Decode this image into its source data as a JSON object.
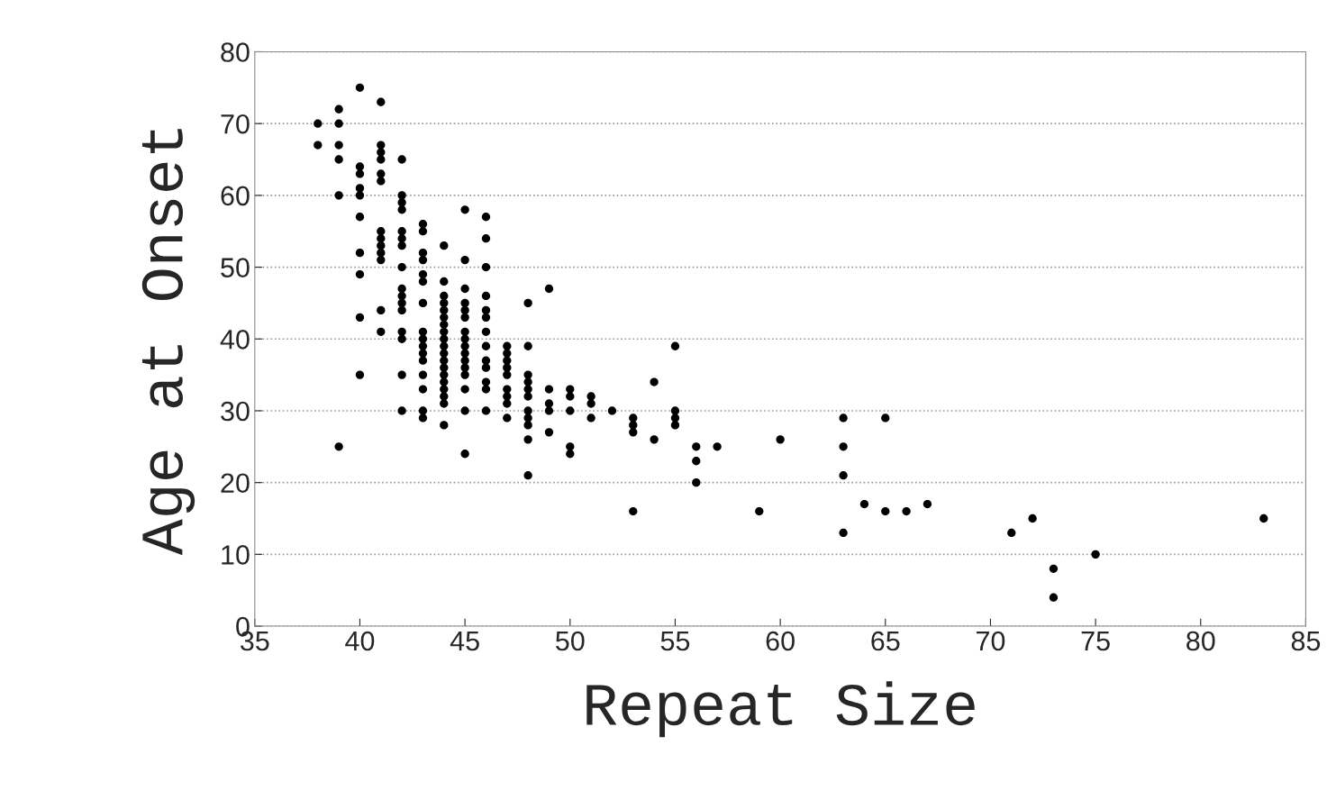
{
  "chart_data": {
    "type": "scatter",
    "xlabel": "Repeat Size",
    "ylabel": "Age at Onset",
    "xlim": [
      35,
      85
    ],
    "xticks": [
      35,
      40,
      45,
      50,
      55,
      60,
      65,
      70,
      75,
      80,
      85
    ],
    "ylim": [
      0,
      80
    ],
    "yticks": [
      0,
      10,
      20,
      30,
      40,
      50,
      60,
      70,
      80
    ],
    "grid": "y",
    "marker": "circle",
    "series": [
      {
        "color": "#000000",
        "x": [
          38,
          38,
          39,
          39,
          39,
          39,
          39,
          39,
          40,
          40,
          40,
          40,
          40,
          40,
          40,
          40,
          40,
          40,
          41,
          41,
          41,
          41,
          41,
          41,
          41,
          41,
          41,
          41,
          41,
          41,
          41,
          42,
          42,
          42,
          42,
          42,
          42,
          42,
          42,
          42,
          42,
          42,
          42,
          42,
          42,
          42,
          42,
          43,
          43,
          43,
          43,
          43,
          43,
          43,
          43,
          43,
          43,
          43,
          43,
          43,
          43,
          43,
          43,
          44,
          44,
          44,
          44,
          44,
          44,
          44,
          44,
          44,
          44,
          44,
          44,
          44,
          44,
          44,
          44,
          44,
          44,
          44,
          45,
          45,
          45,
          45,
          45,
          45,
          45,
          45,
          45,
          45,
          45,
          45,
          45,
          45,
          45,
          45,
          46,
          46,
          46,
          46,
          46,
          46,
          46,
          46,
          46,
          46,
          46,
          46,
          46,
          47,
          47,
          47,
          47,
          47,
          47,
          47,
          47,
          47,
          48,
          48,
          48,
          48,
          48,
          48,
          48,
          48,
          48,
          48,
          48,
          49,
          49,
          49,
          49,
          49,
          50,
          50,
          50,
          50,
          50,
          51,
          51,
          51,
          52,
          53,
          53,
          53,
          53,
          54,
          54,
          55,
          55,
          55,
          55,
          56,
          56,
          56,
          57,
          59,
          60,
          63,
          63,
          63,
          63,
          64,
          65,
          65,
          66,
          67,
          71,
          72,
          73,
          73,
          75,
          83
        ],
        "values": [
          70,
          67,
          72,
          70,
          67,
          65,
          60,
          25,
          75,
          64,
          63,
          61,
          60,
          57,
          52,
          49,
          43,
          35,
          73,
          67,
          66,
          65,
          63,
          62,
          55,
          54,
          53,
          52,
          51,
          44,
          41,
          65,
          60,
          59,
          58,
          55,
          54,
          53,
          50,
          47,
          46,
          45,
          44,
          41,
          40,
          35,
          30,
          56,
          55,
          52,
          51,
          49,
          48,
          45,
          41,
          40,
          39,
          38,
          37,
          35,
          33,
          30,
          29,
          53,
          48,
          46,
          45,
          44,
          43,
          42,
          41,
          40,
          39,
          38,
          37,
          36,
          35,
          34,
          33,
          32,
          31,
          28,
          58,
          51,
          47,
          45,
          44,
          43,
          41,
          40,
          39,
          38,
          37,
          36,
          35,
          33,
          30,
          24,
          57,
          54,
          50,
          46,
          44,
          43,
          41,
          39,
          37,
          36,
          34,
          33,
          30,
          39,
          38,
          37,
          36,
          35,
          33,
          32,
          31,
          29,
          45,
          39,
          35,
          34,
          33,
          32,
          30,
          29,
          28,
          26,
          21,
          47,
          33,
          31,
          30,
          27,
          33,
          32,
          30,
          25,
          24,
          32,
          31,
          29,
          30,
          29,
          28,
          27,
          16,
          34,
          26,
          39,
          30,
          29,
          28,
          25,
          23,
          20,
          25,
          16,
          26,
          29,
          25,
          21,
          13,
          17,
          29,
          16,
          16,
          17,
          13,
          15,
          8,
          4,
          10,
          15
        ]
      }
    ]
  }
}
